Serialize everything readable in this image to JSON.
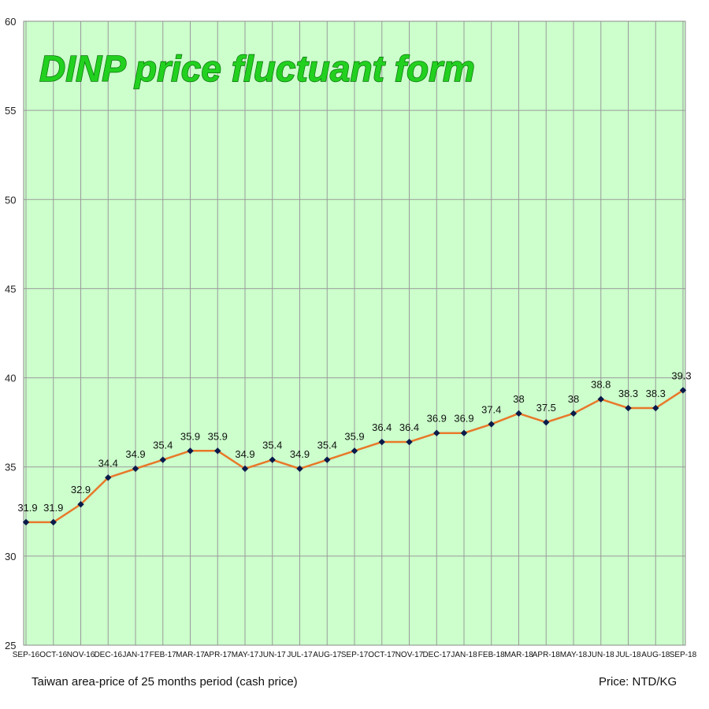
{
  "chart_data": {
    "type": "line",
    "title": "DINP price fluctuant form",
    "categories": [
      "SEP-16",
      "OCT-16",
      "NOV-16",
      "DEC-16",
      "JAN-17",
      "FEB-17",
      "MAR-17",
      "APR-17",
      "MAY-17",
      "JUN-17",
      "JUL-17",
      "AUG-17",
      "SEP-17",
      "OCT-17",
      "NOV-17",
      "DEC-17",
      "JAN-18",
      "FEB-18",
      "MAR-18",
      "APR-18",
      "MAY-18",
      "JUN-18",
      "JUL-18",
      "AUG-18",
      "SEP-18"
    ],
    "values": [
      31.9,
      31.9,
      32.9,
      34.4,
      34.9,
      35.4,
      35.9,
      35.9,
      34.9,
      35.4,
      34.9,
      35.4,
      35.9,
      36.4,
      36.4,
      36.9,
      36.9,
      37.4,
      38,
      37.5,
      38,
      38.8,
      38.3,
      38.3,
      39.3
    ],
    "ylim": [
      25,
      60
    ],
    "yticks": [
      25,
      30,
      35,
      40,
      45,
      50,
      55,
      60
    ],
    "grid": true,
    "colors": {
      "plot_bg": "#ccffcc",
      "grid": "#9a9a9a",
      "line": "#e8782a",
      "marker": "#0a1a4a",
      "title_fill": "#22d11f"
    }
  },
  "footer": {
    "left": "Taiwan area-price of 25 months period (cash price)",
    "right": "Price: NTD/KG"
  }
}
